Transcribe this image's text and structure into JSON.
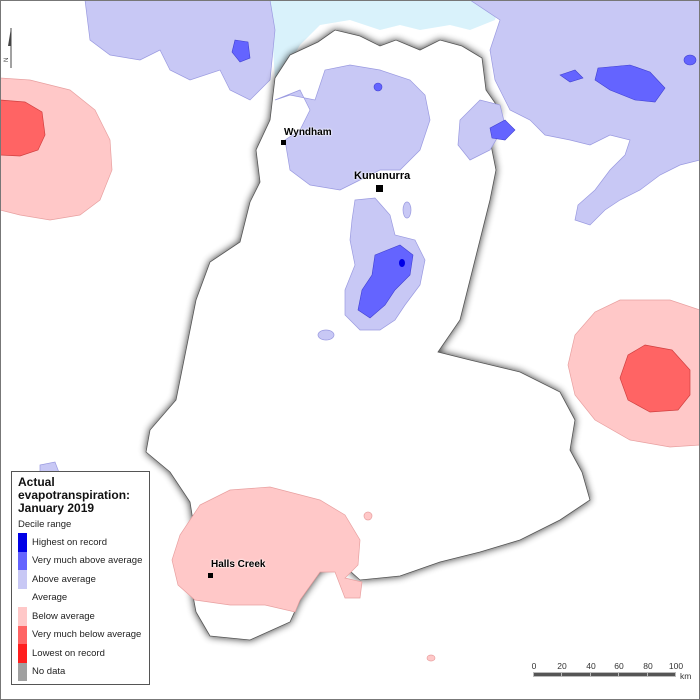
{
  "legend": {
    "title": "Actual evapotranspiration: January 2019",
    "subtitle": "Decile range",
    "items": [
      {
        "label": "Highest on record",
        "color": "#0000e6"
      },
      {
        "label": "Very much above average",
        "color": "#6464ff"
      },
      {
        "label": "Above average",
        "color": "#c8c8f5"
      },
      {
        "label": "Average",
        "color": "#ffffff"
      },
      {
        "label": "Below average",
        "color": "#ffc8c8"
      },
      {
        "label": "Very much below average",
        "color": "#ff6464"
      },
      {
        "label": "Lowest on record",
        "color": "#ff1e1e"
      },
      {
        "label": "No data",
        "color": "#a0a0a0"
      }
    ]
  },
  "towns": {
    "wyndham": "Wyndham",
    "kununurra": "Kununurra",
    "halls_creek": "Halls Creek"
  },
  "scale": {
    "ticks": [
      "0",
      "20",
      "40",
      "60",
      "80",
      "100"
    ],
    "unit": "km"
  },
  "north_arrow": {
    "label": "N"
  },
  "colors": {
    "sea": "#d9f2fb"
  }
}
